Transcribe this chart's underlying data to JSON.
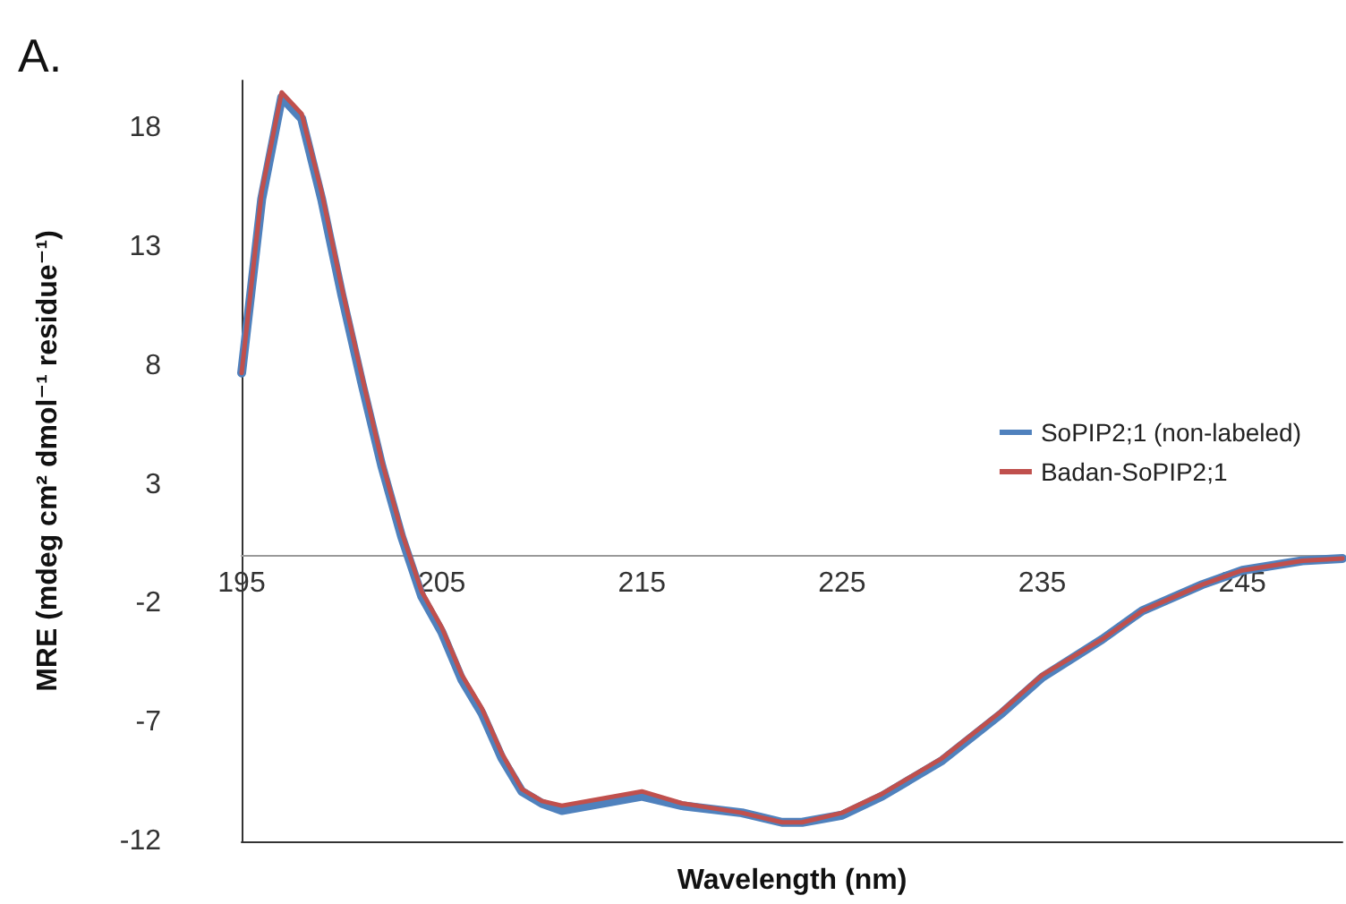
{
  "chart_data": {
    "type": "line",
    "annotations": [
      "A."
    ],
    "xlabel": "Wavelength (nm)",
    "ylabel": "MRE (mdeg cm² dmol⁻¹ residue⁻¹)",
    "xlim": [
      195,
      250
    ],
    "xticks": [
      195,
      205,
      215,
      225,
      235,
      245
    ],
    "ylim": [
      -12,
      20
    ],
    "yticks": [
      -12,
      -7,
      -2,
      3,
      8,
      13,
      18
    ],
    "grid": false,
    "legend": "right",
    "marker": "none",
    "line_style": "solid",
    "series": [
      {
        "name": "SoPIP2;1 (non-labeled)",
        "color": "#4f81bd",
        "x": [
          195,
          196,
          197,
          198,
          199,
          200,
          201,
          202,
          203,
          204,
          205,
          206,
          207,
          208,
          209,
          210,
          211,
          213,
          215,
          217,
          220,
          222,
          223,
          225,
          227,
          230,
          233,
          235,
          238,
          240,
          243,
          245,
          248,
          250
        ],
        "values": [
          7.7,
          15,
          19.3,
          18.4,
          15,
          11,
          7.3,
          3.8,
          0.8,
          -1.7,
          -3.2,
          -5.2,
          -6.6,
          -8.5,
          -9.9,
          -10.4,
          -10.7,
          -10.4,
          -10.1,
          -10.5,
          -10.8,
          -11.2,
          -11.2,
          -10.9,
          -10.1,
          -8.6,
          -6.6,
          -5.1,
          -3.5,
          -2.3,
          -1.2,
          -0.6,
          -0.2,
          -0.1
        ]
      },
      {
        "name": "Badan-SoPIP2;1",
        "color": "#c0504d",
        "x": [
          195,
          196,
          197,
          198,
          199,
          200,
          201,
          202,
          203,
          204,
          205,
          206,
          207,
          208,
          209,
          210,
          211,
          213,
          215,
          217,
          220,
          222,
          223,
          225,
          227,
          230,
          233,
          235,
          238,
          240,
          243,
          245,
          248,
          250
        ],
        "values": [
          7.7,
          15.3,
          19.5,
          18.6,
          15.3,
          11.3,
          7.6,
          4,
          1,
          -1.5,
          -3,
          -5,
          -6.4,
          -8.3,
          -9.8,
          -10.3,
          -10.5,
          -10.2,
          -9.9,
          -10.4,
          -10.8,
          -11.2,
          -11.2,
          -10.8,
          -10,
          -8.5,
          -6.5,
          -5,
          -3.5,
          -2.3,
          -1.2,
          -0.6,
          -0.2,
          -0.1
        ]
      }
    ]
  }
}
